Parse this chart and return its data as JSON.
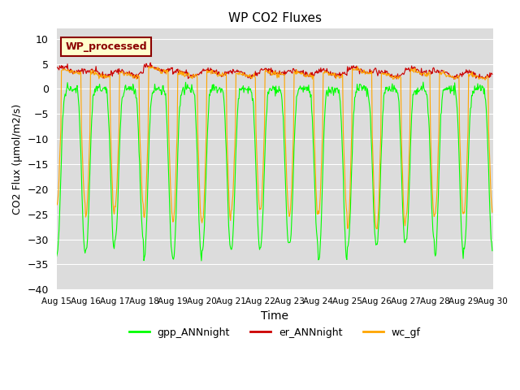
{
  "title": "WP CO2 Fluxes",
  "ylabel": "CO2 Flux (μmol/m2/s)",
  "xlabel": "Time",
  "ylim": [
    -40,
    12
  ],
  "yticks": [
    -40,
    -35,
    -30,
    -25,
    -20,
    -15,
    -10,
    -5,
    0,
    5,
    10
  ],
  "x_start_day": 15,
  "x_end_day": 30,
  "n_days": 15,
  "points_per_day": 48,
  "gpp_color": "#00FF00",
  "er_color": "#CC0000",
  "wc_color": "#FFA500",
  "background_color": "#DCDCDC",
  "legend_label_color": "#8B0000",
  "legend_bg": "#FFFFCC",
  "legend_text": "WP_processed",
  "line_gpp": "gpp_ANNnight",
  "line_er": "er_ANNnight",
  "line_wc": "wc_gf",
  "linewidth": 0.8,
  "x_tick_days": [
    15,
    16,
    17,
    18,
    19,
    20,
    21,
    22,
    23,
    24,
    25,
    26,
    27,
    28,
    29,
    30
  ]
}
